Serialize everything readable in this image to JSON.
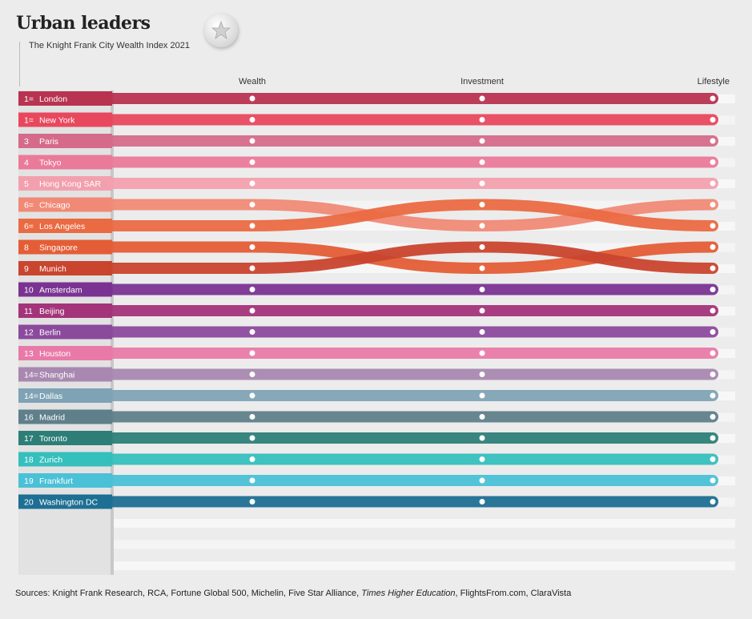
{
  "title": "Urban leaders",
  "subtitle": "The Knight Frank City Wealth Index 2021",
  "sources": {
    "lead": "Sources: Knight Frank Research, RCA, Fortune Global 500, Michelin, Five Star Alliance, ",
    "italic": "Times Higher Education",
    "tail": ", FlightsFrom.com, ClaraVista"
  },
  "chart_data": {
    "type": "bump",
    "title": "Urban leaders",
    "subtitle": "The Knight Frank City Wealth Index 2021",
    "columns": [
      "Wealth",
      "Investment",
      "Lifestyle"
    ],
    "cities": [
      {
        "rank_label": "1=",
        "name": "London",
        "color": "#b83350",
        "ranks": [
          1,
          1,
          1
        ]
      },
      {
        "rank_label": "1=",
        "name": "New York",
        "color": "#e8485e",
        "ranks": [
          2,
          2,
          2
        ]
      },
      {
        "rank_label": "3",
        "name": "Paris",
        "color": "#d56a8a",
        "ranks": [
          3,
          3,
          3
        ]
      },
      {
        "rank_label": "4",
        "name": "Tokyo",
        "color": "#ea7a9a",
        "ranks": [
          4,
          4,
          4
        ]
      },
      {
        "rank_label": "5",
        "name": "Hong Kong SAR",
        "color": "#f3a0ae",
        "ranks": [
          5,
          5,
          5
        ]
      },
      {
        "rank_label": "6=",
        "name": "Chicago",
        "color": "#f08a76",
        "ranks": [
          6,
          7,
          6
        ]
      },
      {
        "rank_label": "6=",
        "name": "Los Angeles",
        "color": "#ea6a42",
        "ranks": [
          7,
          6,
          7
        ]
      },
      {
        "rank_label": "8",
        "name": "Singapore",
        "color": "#e35d36",
        "ranks": [
          8,
          9,
          8
        ]
      },
      {
        "rank_label": "9",
        "name": "Munich",
        "color": "#c9452e",
        "ranks": [
          9,
          8,
          9
        ]
      },
      {
        "rank_label": "10",
        "name": "Amsterdam",
        "color": "#7a3392",
        "ranks": [
          10,
          10,
          10
        ]
      },
      {
        "rank_label": "11",
        "name": "Beijing",
        "color": "#a3347a",
        "ranks": [
          11,
          11,
          11
        ]
      },
      {
        "rank_label": "12",
        "name": "Berlin",
        "color": "#8c4a9d",
        "ranks": [
          12,
          12,
          12
        ]
      },
      {
        "rank_label": "13",
        "name": "Houston",
        "color": "#e97aa8",
        "ranks": [
          13,
          13,
          13
        ]
      },
      {
        "rank_label": "14=",
        "name": "Shanghai",
        "color": "#a888b0",
        "ranks": [
          14,
          14,
          14
        ]
      },
      {
        "rank_label": "14=",
        "name": "Dallas",
        "color": "#7fa3b5",
        "ranks": [
          15,
          15,
          15
        ]
      },
      {
        "rank_label": "16",
        "name": "Madrid",
        "color": "#5f7f8a",
        "ranks": [
          16,
          16,
          16
        ]
      },
      {
        "rank_label": "17",
        "name": "Toronto",
        "color": "#2e7e78",
        "ranks": [
          17,
          17,
          17
        ]
      },
      {
        "rank_label": "18",
        "name": "Zurich",
        "color": "#35bfbd",
        "ranks": [
          18,
          18,
          18
        ]
      },
      {
        "rank_label": "19",
        "name": "Frankfurt",
        "color": "#4ac1d6",
        "ranks": [
          19,
          19,
          19
        ]
      },
      {
        "rank_label": "20",
        "name": "Washington DC",
        "color": "#1d6f93",
        "ranks": [
          20,
          20,
          20
        ]
      }
    ]
  }
}
